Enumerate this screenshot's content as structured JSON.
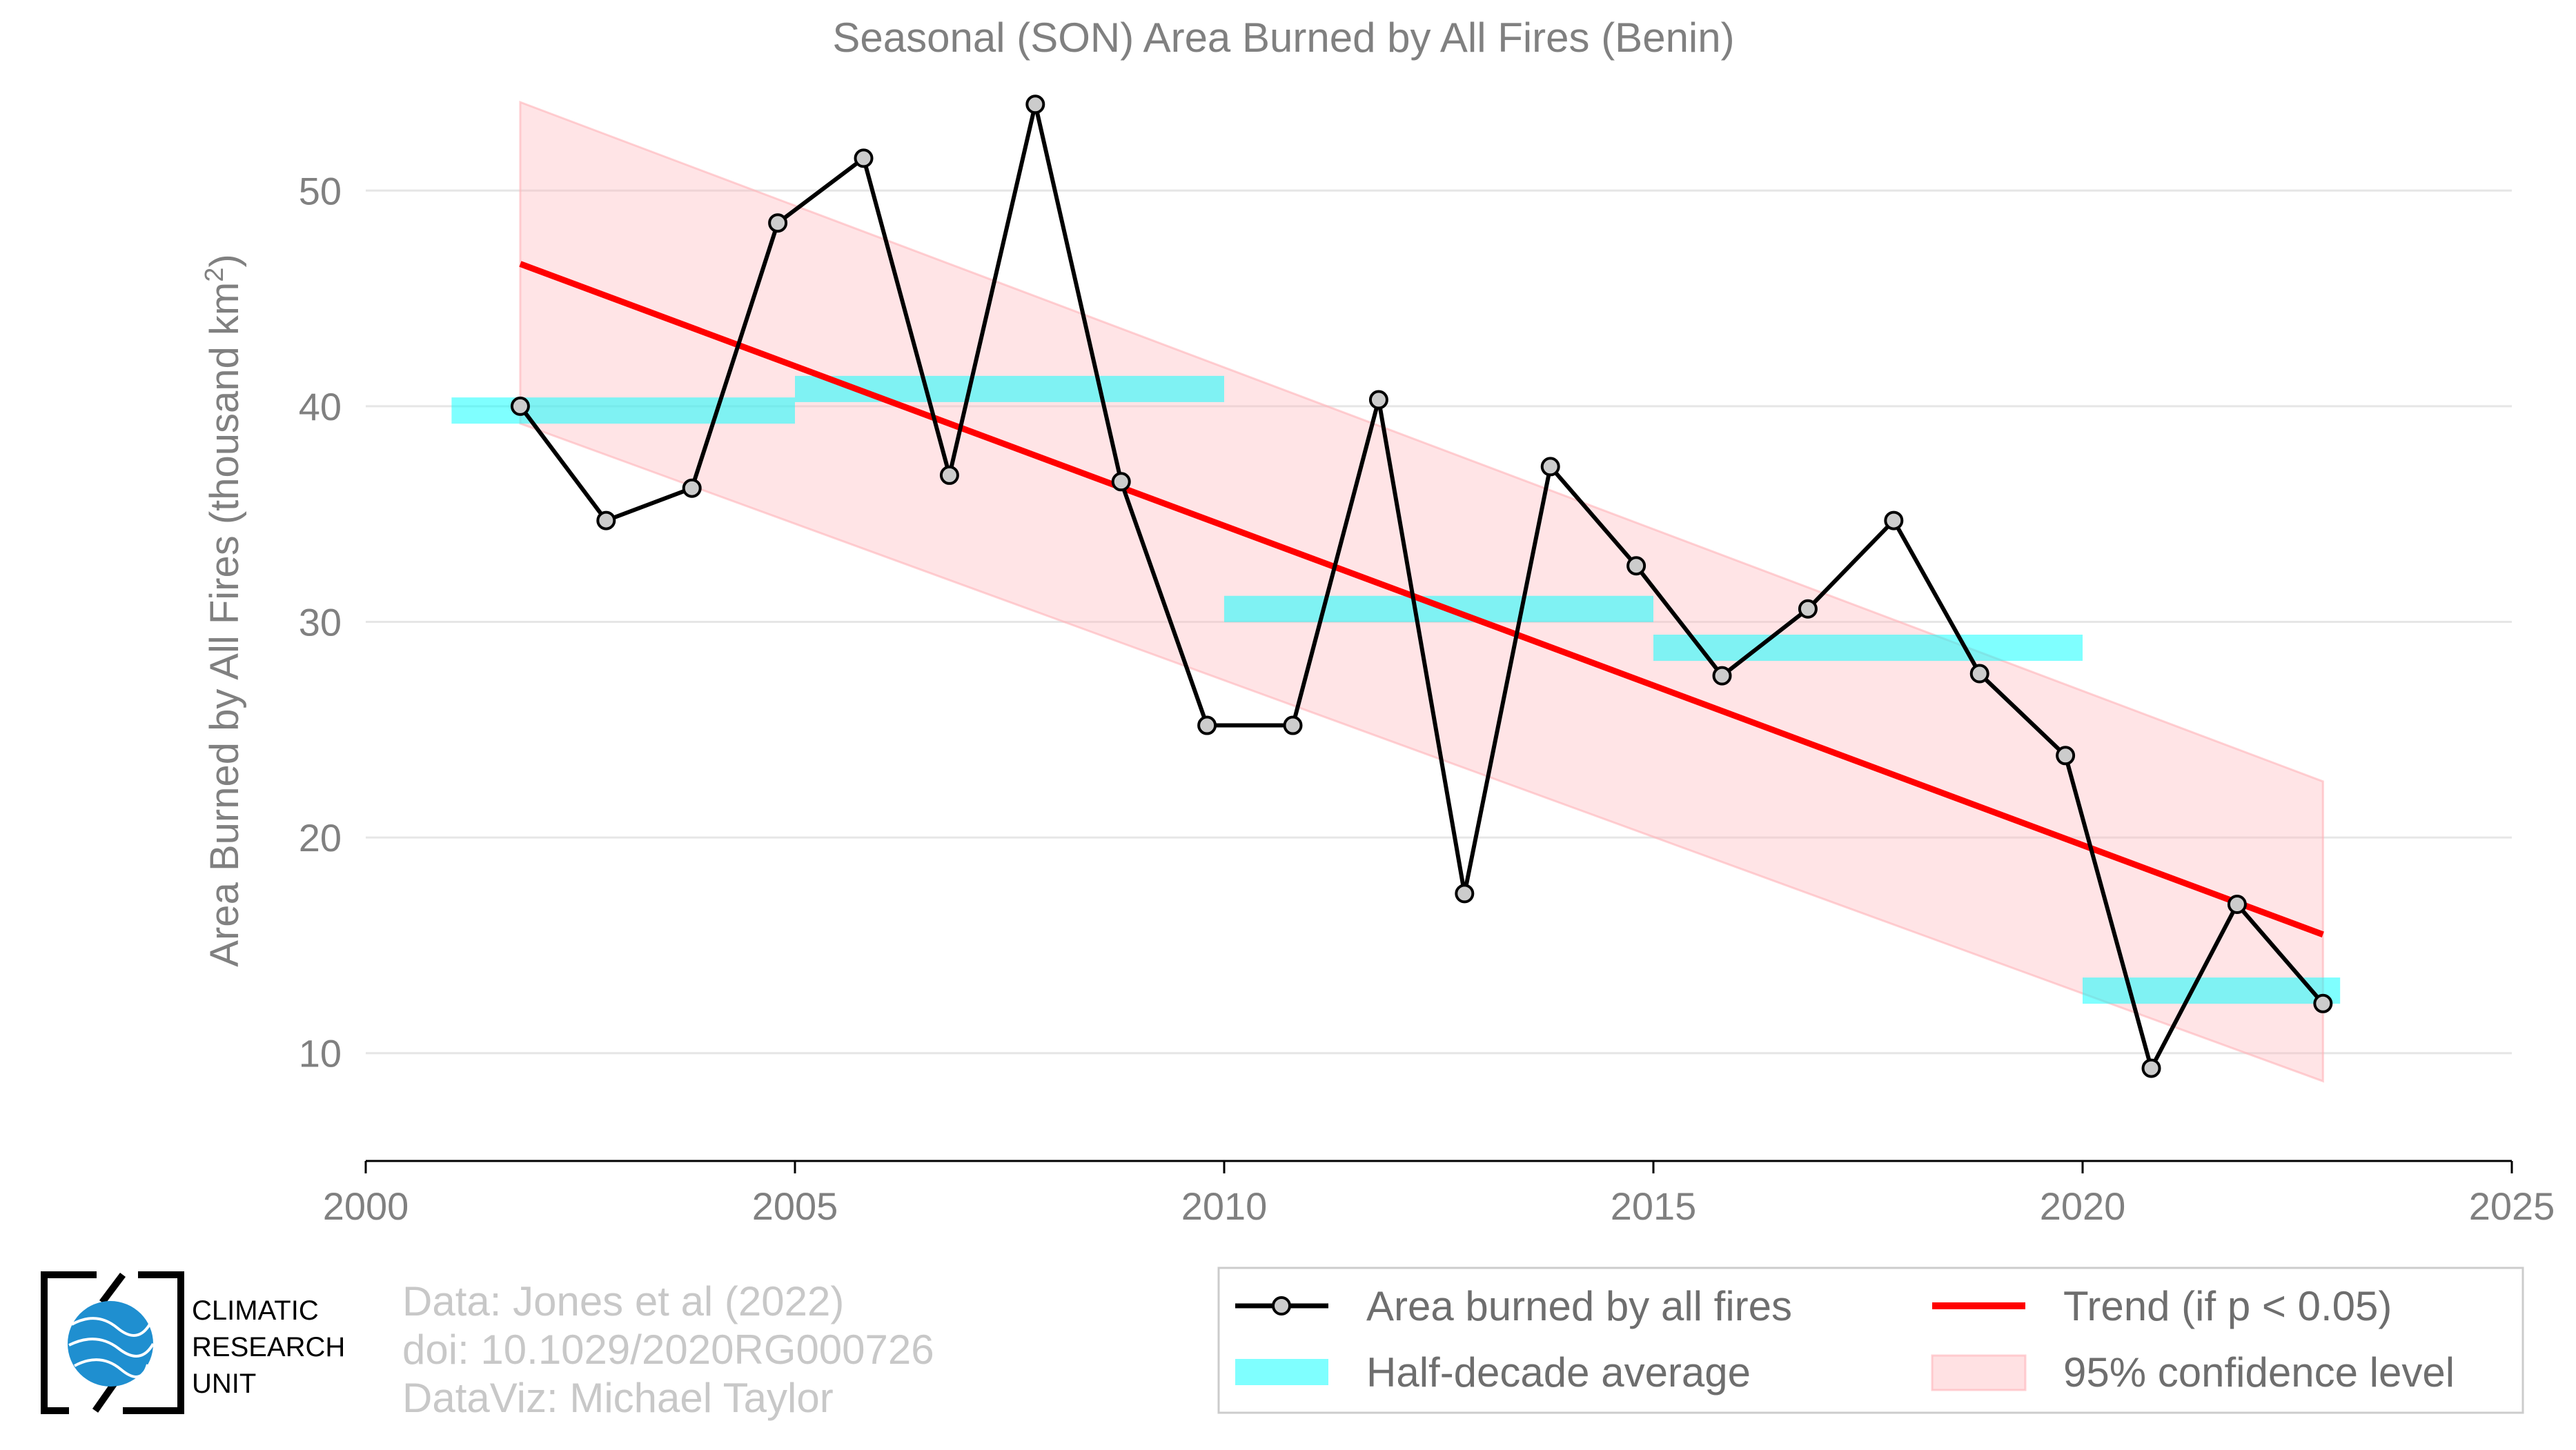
{
  "chart_data": {
    "type": "line",
    "title": "Seasonal (SON) Area Burned by All Fires (Benin)",
    "ylabel": "Area Burned by All Fires (thousand km",
    "ylabel_sup": "2",
    "ylabel_end": ")",
    "xlabel": "",
    "xlim": [
      2000,
      2025
    ],
    "ylim": [
      5,
      55
    ],
    "x_ticks": [
      2000,
      2005,
      2010,
      2015,
      2020,
      2025
    ],
    "y_ticks": [
      10,
      20,
      30,
      40,
      50
    ],
    "grid": "horizontal",
    "series": [
      {
        "name": "Area burned by all fires",
        "color": "#000000",
        "marker_fill": "#cccccc",
        "x": [
          2001.8,
          2002.8,
          2003.8,
          2004.8,
          2005.8,
          2006.8,
          2007.8,
          2008.8,
          2009.8,
          2010.8,
          2011.8,
          2012.8,
          2013.8,
          2014.8,
          2015.8,
          2016.8,
          2017.8,
          2018.8,
          2019.8,
          2020.8,
          2021.8,
          2022.8
        ],
        "values": [
          40.0,
          34.7,
          36.2,
          48.5,
          51.5,
          36.8,
          54.0,
          36.5,
          25.2,
          25.2,
          40.3,
          17.4,
          37.2,
          32.6,
          27.5,
          30.6,
          34.7,
          27.6,
          23.8,
          9.3,
          16.9,
          12.3
        ]
      }
    ],
    "half_decade": {
      "name": "Half-decade average",
      "color": "#00ffff",
      "segments": [
        {
          "x0": 2001,
          "x1": 2005,
          "value": 39.8
        },
        {
          "x0": 2005,
          "x1": 2010,
          "value": 40.8
        },
        {
          "x0": 2010,
          "x1": 2015,
          "value": 30.6
        },
        {
          "x0": 2015,
          "x1": 2020,
          "value": 28.8
        },
        {
          "x0": 2020,
          "x1": 2023,
          "value": 12.9
        }
      ]
    },
    "trend": {
      "name": "Trend (if p < 0.05)",
      "color": "#ff0000",
      "x": [
        2001.8,
        2022.8
      ],
      "values": [
        46.6,
        15.5
      ]
    },
    "confidence": {
      "name": "95% confidence level",
      "color": "#ffb3b8",
      "x": [
        2001.8,
        2022.8
      ],
      "upper": [
        54.1,
        22.6
      ],
      "lower": [
        39.2,
        8.7
      ]
    },
    "legend_position": "bottom-right"
  },
  "credits": {
    "line1": "Data: Jones et al (2022)",
    "line2": "doi: 10.1029/2020RG000726",
    "line3": "DataViz: Michael Taylor"
  },
  "logo": {
    "line1": "CLIMATIC",
    "line2": "RESEARCH",
    "line3": "UNIT",
    "color": "#1f8fd0"
  }
}
